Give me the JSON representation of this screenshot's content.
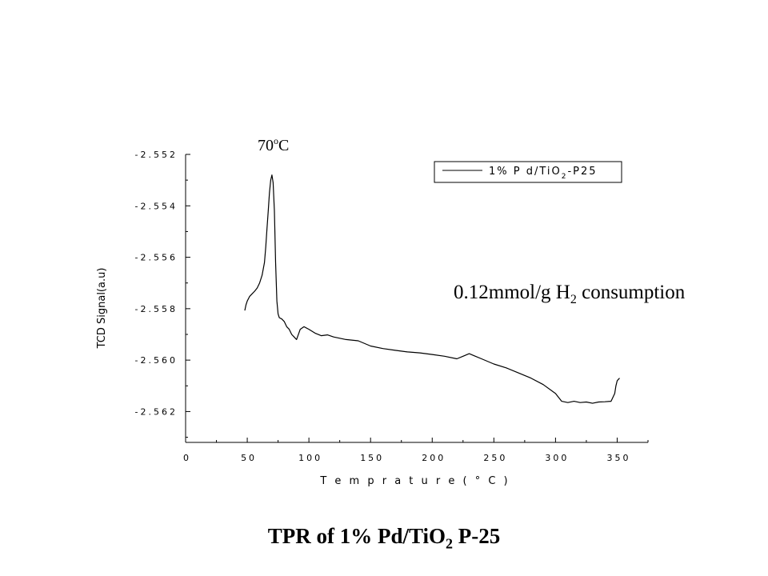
{
  "chart_data": {
    "type": "line",
    "xlabel": "T e m p r a t u r e ( ° C )",
    "ylabel": "TCD Signal(a.u)",
    "xlim": [
      0,
      375
    ],
    "ylim": [
      -2.5632,
      -2.552
    ],
    "x_ticks": [
      "0",
      "50",
      "100",
      "150",
      "200",
      "250",
      "300",
      "350"
    ],
    "y_ticks": [
      "-2.552",
      "-2.554",
      "-2.556",
      "-2.558",
      "-2.560",
      "-2.562"
    ],
    "legend_placement": "top-right",
    "series": [
      {
        "name": "1% Pd/TiO2-P25",
        "x": [
          48,
          49,
          50,
          52,
          54,
          56,
          58,
          60,
          62,
          64,
          65,
          66,
          67,
          68,
          69,
          70,
          71,
          72,
          73,
          74,
          75,
          76,
          78,
          80,
          82,
          84,
          86,
          88,
          90,
          93,
          96,
          100,
          105,
          110,
          115,
          120,
          125,
          130,
          140,
          150,
          160,
          170,
          180,
          190,
          200,
          210,
          220,
          225,
          230,
          235,
          240,
          250,
          260,
          270,
          280,
          290,
          300,
          305,
          310,
          315,
          320,
          325,
          330,
          335,
          340,
          345,
          348,
          349,
          350,
          351,
          352
        ],
        "y": [
          -2.55807,
          -2.55785,
          -2.5577,
          -2.55752,
          -2.55742,
          -2.55732,
          -2.5572,
          -2.557,
          -2.5567,
          -2.5562,
          -2.5556,
          -2.5549,
          -2.5542,
          -2.5535,
          -2.553,
          -2.5528,
          -2.5531,
          -2.5542,
          -2.5562,
          -2.5577,
          -2.5582,
          -2.55835,
          -2.5584,
          -2.5585,
          -2.5587,
          -2.5588,
          -2.559,
          -2.5591,
          -2.5592,
          -2.5588,
          -2.5587,
          -2.5588,
          -2.55895,
          -2.55905,
          -2.55902,
          -2.5591,
          -2.55915,
          -2.5592,
          -2.55925,
          -2.55945,
          -2.55955,
          -2.55962,
          -2.55968,
          -2.55972,
          -2.55978,
          -2.55985,
          -2.55995,
          -2.55985,
          -2.55975,
          -2.55985,
          -2.55995,
          -2.56015,
          -2.5603,
          -2.5605,
          -2.5607,
          -2.56095,
          -2.5613,
          -2.5616,
          -2.56165,
          -2.5616,
          -2.56165,
          -2.56163,
          -2.56168,
          -2.56163,
          -2.56162,
          -2.5616,
          -2.5613,
          -2.561,
          -2.5608,
          -2.56075,
          -2.5607
        ]
      }
    ],
    "annotations": {
      "peak_label": "70",
      "peak_label_unit": "o",
      "peak_label_c": "C",
      "consumption_main": "0.12mmol/g H",
      "consumption_sub": "2",
      "consumption_rest": " consumption"
    },
    "legend_text_main": "1%  P d/TiO",
    "legend_text_sub": "2",
    "legend_text_rest": "-P25"
  },
  "caption": {
    "main": "TPR  of  1% Pd/TiO",
    "sub": "2",
    "rest": " P-25"
  }
}
